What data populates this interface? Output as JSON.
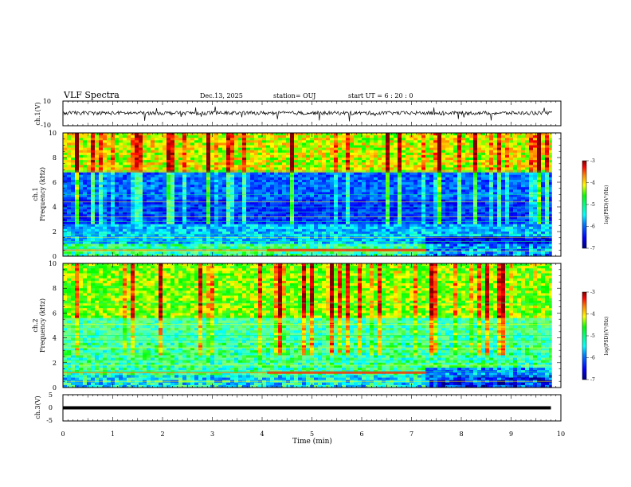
{
  "header": {
    "title": "VLF Spectra",
    "date": "Dec.13, 2025",
    "station": "station= OUJ",
    "start": "start  UT  =   6  : 20 : 0"
  },
  "colors": {
    "trace": "#000000",
    "colormap": [
      "#000080",
      "#0000ff",
      "#0080ff",
      "#00ffff",
      "#80ff80",
      "#00ff00",
      "#ffff00",
      "#ff8000",
      "#ff0000",
      "#800000"
    ]
  },
  "chart_data": [
    {
      "type": "line",
      "panel": "ch1_waveform",
      "ylabel": "ch.1(V)",
      "ylim": [
        -10,
        10
      ],
      "ytick_labels": [
        "10",
        "-10"
      ]
    },
    {
      "type": "heatmap",
      "panel": "ch1_spectrogram",
      "ylabel_top": "ch.1",
      "ylabel": "Frequency (kHz)",
      "ylim": [
        0,
        10
      ],
      "ytick_labels": [
        "0",
        "2",
        "4",
        "6",
        "8",
        "10"
      ],
      "colorbar": {
        "label": "log(PSD)(V²/Hz)",
        "range": [
          -7,
          -3
        ],
        "tick_labels": [
          "-3",
          "-4",
          "-5",
          "-6",
          "-7"
        ]
      }
    },
    {
      "type": "heatmap",
      "panel": "ch2_spectrogram",
      "ylabel_top": "ch.2",
      "ylabel": "Frequency (kHz)",
      "ylim": [
        0,
        10
      ],
      "ytick_labels": [
        "0",
        "2",
        "4",
        "6",
        "8",
        "10"
      ],
      "colorbar": {
        "label": "log(PSD)(V²/Hz)",
        "range": [
          -7,
          -3
        ],
        "tick_labels": [
          "-3",
          "-4",
          "-5",
          "-6",
          "-7"
        ]
      }
    },
    {
      "type": "line",
      "panel": "ch3_waveform",
      "ylabel": "ch.3(V)",
      "ylim": [
        -5,
        5
      ],
      "ytick_labels": [
        "5",
        "0",
        "-5"
      ],
      "series": [
        {
          "x": [
            0,
            9.8
          ],
          "y": [
            0,
            0
          ]
        }
      ]
    }
  ],
  "xaxis": {
    "label": "Time (min)",
    "xlim": [
      0,
      10
    ],
    "tick_labels": [
      "0",
      "1",
      "2",
      "3",
      "4",
      "5",
      "6",
      "7",
      "8",
      "9",
      "10"
    ]
  }
}
